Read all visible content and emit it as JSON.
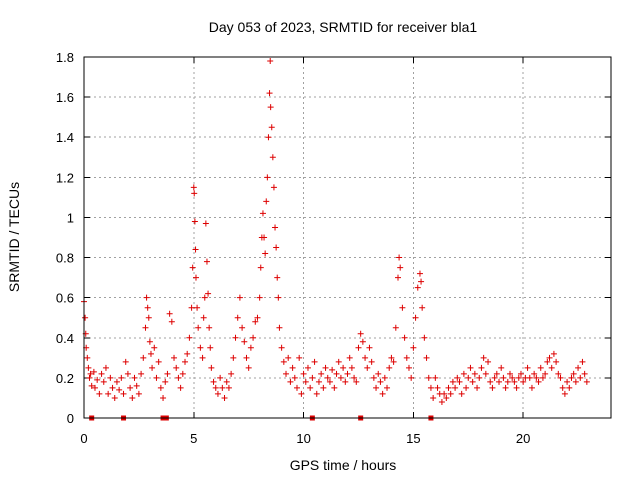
{
  "chart_data": {
    "type": "scatter",
    "title": "Day 053 of 2023, SRMTID for receiver bla1",
    "xlabel": "GPS time / hours",
    "ylabel": "SRMTID / TECUs",
    "xlim": [
      0,
      24
    ],
    "ylim": [
      0,
      1.8
    ],
    "xticks": [
      0,
      5,
      10,
      15,
      20
    ],
    "xtick_labels": [
      "0",
      "5",
      "10",
      "15",
      "20"
    ],
    "yticks": [
      0,
      0.2,
      0.4,
      0.6,
      0.8,
      1.0,
      1.2,
      1.4,
      1.6,
      1.8
    ],
    "ytick_labels": [
      "0",
      "0.2",
      "0.4",
      "0.6",
      "0.8",
      "1",
      "1.2",
      "1.4",
      "1.6",
      "1.8"
    ],
    "grid": true,
    "marker": "plus",
    "color": "#dd0000",
    "baseline_flags_x": [
      0.35,
      1.8,
      3.6,
      3.75,
      10.4,
      12.6,
      15.8
    ],
    "series": [
      {
        "name": "SRMTID",
        "points": [
          [
            0.0,
            0.58
          ],
          [
            0.05,
            0.5
          ],
          [
            0.08,
            0.42
          ],
          [
            0.1,
            0.35
          ],
          [
            0.15,
            0.3
          ],
          [
            0.2,
            0.25
          ],
          [
            0.25,
            0.2
          ],
          [
            0.3,
            0.22
          ],
          [
            0.35,
            0.16
          ],
          [
            0.45,
            0.23
          ],
          [
            0.5,
            0.15
          ],
          [
            0.6,
            0.19
          ],
          [
            0.7,
            0.12
          ],
          [
            0.8,
            0.22
          ],
          [
            0.9,
            0.18
          ],
          [
            1.0,
            0.25
          ],
          [
            1.1,
            0.12
          ],
          [
            1.2,
            0.2
          ],
          [
            1.3,
            0.15
          ],
          [
            1.4,
            0.1
          ],
          [
            1.5,
            0.18
          ],
          [
            1.6,
            0.14
          ],
          [
            1.7,
            0.2
          ],
          [
            1.8,
            0.12
          ],
          [
            1.9,
            0.28
          ],
          [
            2.0,
            0.22
          ],
          [
            2.1,
            0.15
          ],
          [
            2.2,
            0.1
          ],
          [
            2.3,
            0.2
          ],
          [
            2.4,
            0.16
          ],
          [
            2.5,
            0.12
          ],
          [
            2.6,
            0.22
          ],
          [
            2.7,
            0.3
          ],
          [
            2.8,
            0.45
          ],
          [
            2.85,
            0.6
          ],
          [
            2.9,
            0.55
          ],
          [
            2.95,
            0.5
          ],
          [
            3.0,
            0.38
          ],
          [
            3.05,
            0.32
          ],
          [
            3.1,
            0.25
          ],
          [
            3.2,
            0.35
          ],
          [
            3.3,
            0.2
          ],
          [
            3.4,
            0.28
          ],
          [
            3.5,
            0.15
          ],
          [
            3.6,
            0.1
          ],
          [
            3.7,
            0.18
          ],
          [
            3.8,
            0.22
          ],
          [
            3.9,
            0.52
          ],
          [
            4.0,
            0.48
          ],
          [
            4.1,
            0.3
          ],
          [
            4.2,
            0.25
          ],
          [
            4.3,
            0.2
          ],
          [
            4.4,
            0.15
          ],
          [
            4.5,
            0.22
          ],
          [
            4.6,
            0.28
          ],
          [
            4.7,
            0.32
          ],
          [
            4.8,
            0.4
          ],
          [
            4.9,
            0.55
          ],
          [
            4.95,
            0.75
          ],
          [
            5.0,
            1.15
          ],
          [
            5.02,
            1.12
          ],
          [
            5.05,
            0.98
          ],
          [
            5.08,
            0.84
          ],
          [
            5.1,
            0.7
          ],
          [
            5.15,
            0.55
          ],
          [
            5.2,
            0.45
          ],
          [
            5.3,
            0.35
          ],
          [
            5.4,
            0.3
          ],
          [
            5.45,
            0.5
          ],
          [
            5.5,
            0.6
          ],
          [
            5.55,
            0.97
          ],
          [
            5.6,
            0.78
          ],
          [
            5.65,
            0.62
          ],
          [
            5.7,
            0.45
          ],
          [
            5.75,
            0.35
          ],
          [
            5.8,
            0.25
          ],
          [
            5.9,
            0.18
          ],
          [
            6.0,
            0.15
          ],
          [
            6.1,
            0.12
          ],
          [
            6.2,
            0.2
          ],
          [
            6.3,
            0.15
          ],
          [
            6.4,
            0.1
          ],
          [
            6.5,
            0.18
          ],
          [
            6.6,
            0.15
          ],
          [
            6.7,
            0.22
          ],
          [
            6.8,
            0.3
          ],
          [
            6.9,
            0.4
          ],
          [
            7.0,
            0.5
          ],
          [
            7.1,
            0.6
          ],
          [
            7.2,
            0.45
          ],
          [
            7.3,
            0.38
          ],
          [
            7.4,
            0.3
          ],
          [
            7.5,
            0.25
          ],
          [
            7.6,
            0.35
          ],
          [
            7.7,
            0.4
          ],
          [
            7.8,
            0.48
          ],
          [
            7.9,
            0.5
          ],
          [
            8.0,
            0.6
          ],
          [
            8.05,
            0.75
          ],
          [
            8.1,
            0.9
          ],
          [
            8.15,
            1.02
          ],
          [
            8.2,
            0.9
          ],
          [
            8.25,
            0.82
          ],
          [
            8.3,
            1.08
          ],
          [
            8.35,
            1.2
          ],
          [
            8.4,
            1.4
          ],
          [
            8.45,
            1.62
          ],
          [
            8.48,
            1.78
          ],
          [
            8.5,
            1.55
          ],
          [
            8.55,
            1.45
          ],
          [
            8.6,
            1.3
          ],
          [
            8.65,
            1.15
          ],
          [
            8.7,
            0.95
          ],
          [
            8.75,
            0.85
          ],
          [
            8.8,
            0.7
          ],
          [
            8.85,
            0.6
          ],
          [
            8.9,
            0.45
          ],
          [
            9.0,
            0.35
          ],
          [
            9.1,
            0.28
          ],
          [
            9.2,
            0.22
          ],
          [
            9.3,
            0.3
          ],
          [
            9.4,
            0.18
          ],
          [
            9.5,
            0.25
          ],
          [
            9.6,
            0.2
          ],
          [
            9.7,
            0.15
          ],
          [
            9.8,
            0.3
          ],
          [
            9.9,
            0.12
          ],
          [
            10.0,
            0.22
          ],
          [
            10.1,
            0.18
          ],
          [
            10.2,
            0.25
          ],
          [
            10.3,
            0.15
          ],
          [
            10.4,
            0.2
          ],
          [
            10.5,
            0.28
          ],
          [
            10.6,
            0.12
          ],
          [
            10.7,
            0.18
          ],
          [
            10.8,
            0.22
          ],
          [
            10.9,
            0.15
          ],
          [
            11.0,
            0.25
          ],
          [
            11.1,
            0.2
          ],
          [
            11.2,
            0.18
          ],
          [
            11.3,
            0.24
          ],
          [
            11.4,
            0.15
          ],
          [
            11.5,
            0.22
          ],
          [
            11.6,
            0.28
          ],
          [
            11.7,
            0.2
          ],
          [
            11.8,
            0.25
          ],
          [
            11.9,
            0.18
          ],
          [
            12.0,
            0.22
          ],
          [
            12.1,
            0.3
          ],
          [
            12.2,
            0.25
          ],
          [
            12.3,
            0.2
          ],
          [
            12.4,
            0.18
          ],
          [
            12.5,
            0.35
          ],
          [
            12.6,
            0.42
          ],
          [
            12.7,
            0.38
          ],
          [
            12.8,
            0.3
          ],
          [
            12.9,
            0.25
          ],
          [
            13.0,
            0.35
          ],
          [
            13.1,
            0.28
          ],
          [
            13.2,
            0.2
          ],
          [
            13.3,
            0.15
          ],
          [
            13.4,
            0.22
          ],
          [
            13.5,
            0.18
          ],
          [
            13.6,
            0.12
          ],
          [
            13.7,
            0.2
          ],
          [
            13.8,
            0.15
          ],
          [
            13.9,
            0.25
          ],
          [
            14.0,
            0.3
          ],
          [
            14.1,
            0.28
          ],
          [
            14.2,
            0.45
          ],
          [
            14.3,
            0.7
          ],
          [
            14.35,
            0.8
          ],
          [
            14.4,
            0.75
          ],
          [
            14.5,
            0.55
          ],
          [
            14.6,
            0.4
          ],
          [
            14.7,
            0.3
          ],
          [
            14.8,
            0.25
          ],
          [
            14.9,
            0.2
          ],
          [
            15.0,
            0.35
          ],
          [
            15.1,
            0.5
          ],
          [
            15.2,
            0.65
          ],
          [
            15.3,
            0.72
          ],
          [
            15.35,
            0.68
          ],
          [
            15.4,
            0.55
          ],
          [
            15.5,
            0.4
          ],
          [
            15.6,
            0.3
          ],
          [
            15.7,
            0.2
          ],
          [
            15.8,
            0.15
          ],
          [
            15.9,
            0.1
          ],
          [
            16.0,
            0.2
          ],
          [
            16.1,
            0.15
          ],
          [
            16.2,
            0.12
          ],
          [
            16.3,
            0.08
          ],
          [
            16.4,
            0.12
          ],
          [
            16.5,
            0.1
          ],
          [
            16.6,
            0.15
          ],
          [
            16.7,
            0.12
          ],
          [
            16.8,
            0.18
          ],
          [
            16.9,
            0.15
          ],
          [
            17.0,
            0.2
          ],
          [
            17.1,
            0.18
          ],
          [
            17.2,
            0.12
          ],
          [
            17.3,
            0.22
          ],
          [
            17.4,
            0.15
          ],
          [
            17.5,
            0.2
          ],
          [
            17.6,
            0.25
          ],
          [
            17.7,
            0.18
          ],
          [
            17.8,
            0.22
          ],
          [
            17.9,
            0.15
          ],
          [
            18.0,
            0.2
          ],
          [
            18.1,
            0.25
          ],
          [
            18.2,
            0.3
          ],
          [
            18.3,
            0.22
          ],
          [
            18.4,
            0.28
          ],
          [
            18.5,
            0.18
          ],
          [
            18.6,
            0.15
          ],
          [
            18.7,
            0.2
          ],
          [
            18.8,
            0.22
          ],
          [
            18.9,
            0.18
          ],
          [
            19.0,
            0.25
          ],
          [
            19.1,
            0.2
          ],
          [
            19.2,
            0.15
          ],
          [
            19.3,
            0.18
          ],
          [
            19.4,
            0.22
          ],
          [
            19.5,
            0.2
          ],
          [
            19.6,
            0.18
          ],
          [
            19.7,
            0.15
          ],
          [
            19.8,
            0.2
          ],
          [
            19.9,
            0.22
          ],
          [
            20.0,
            0.18
          ],
          [
            20.1,
            0.2
          ],
          [
            20.2,
            0.25
          ],
          [
            20.3,
            0.2
          ],
          [
            20.4,
            0.15
          ],
          [
            20.5,
            0.22
          ],
          [
            20.6,
            0.2
          ],
          [
            20.7,
            0.18
          ],
          [
            20.8,
            0.25
          ],
          [
            20.9,
            0.2
          ],
          [
            21.0,
            0.22
          ],
          [
            21.1,
            0.28
          ],
          [
            21.2,
            0.3
          ],
          [
            21.3,
            0.25
          ],
          [
            21.4,
            0.32
          ],
          [
            21.5,
            0.28
          ],
          [
            21.6,
            0.22
          ],
          [
            21.7,
            0.2
          ],
          [
            21.8,
            0.15
          ],
          [
            21.9,
            0.12
          ],
          [
            22.0,
            0.18
          ],
          [
            22.1,
            0.15
          ],
          [
            22.2,
            0.2
          ],
          [
            22.3,
            0.22
          ],
          [
            22.4,
            0.18
          ],
          [
            22.5,
            0.25
          ],
          [
            22.6,
            0.2
          ],
          [
            22.7,
            0.28
          ],
          [
            22.8,
            0.22
          ],
          [
            22.9,
            0.18
          ]
        ]
      }
    ]
  }
}
